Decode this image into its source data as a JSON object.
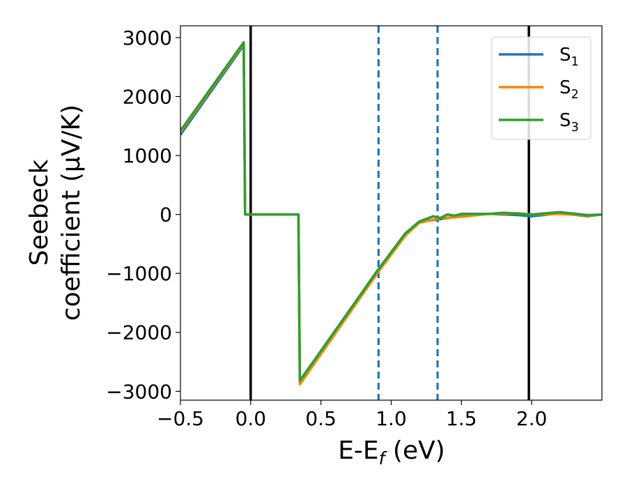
{
  "chart_data": {
    "type": "line",
    "xlabel": "E-E",
    "xlabel_sub": "f",
    "xlabel_unit": " (eV)",
    "ylabel_line1": "Seebeck",
    "ylabel_line2": "coefficient  (μV/K)",
    "xlim": [
      -0.5,
      2.5
    ],
    "ylim": [
      -3150,
      3200
    ],
    "xticks": [
      -0.5,
      0.0,
      0.5,
      1.0,
      1.5,
      2.0
    ],
    "xtick_labels": [
      "−0.5",
      "0.0",
      "0.5",
      "1.0",
      "1.5",
      "2.0"
    ],
    "yticks": [
      3000,
      2000,
      1000,
      0,
      -1000,
      -2000,
      -3000
    ],
    "ytick_labels": [
      "3000",
      "2000",
      "1000",
      "0",
      "−1000",
      "−2000",
      "−3000"
    ],
    "vlines": [
      {
        "x": 0.0,
        "style": "solid",
        "color": "#000000"
      },
      {
        "x": 1.98,
        "style": "solid",
        "color": "#000000"
      },
      {
        "x": 0.91,
        "style": "dashed",
        "color": "#1f77b4"
      },
      {
        "x": 1.33,
        "style": "dashed",
        "color": "#1f77b4"
      }
    ],
    "legend_position": "top-right",
    "series": [
      {
        "name": "S",
        "sub": "1",
        "color": "#1f77b4",
        "x": [
          -0.5,
          -0.05,
          -0.04,
          0.34,
          0.35,
          0.9,
          1.1,
          1.2,
          1.35,
          1.5,
          1.7,
          1.9,
          2.0,
          2.2,
          2.4,
          2.5
        ],
        "y": [
          1350,
          2870,
          0,
          0,
          -2840,
          -960,
          -330,
          -120,
          -80,
          -20,
          10,
          -10,
          -30,
          20,
          -30,
          0
        ]
      },
      {
        "name": "S",
        "sub": "2",
        "color": "#ff7f0e",
        "x": [
          -0.5,
          -0.05,
          -0.04,
          0.34,
          0.35,
          0.9,
          1.1,
          1.2,
          1.35,
          1.45,
          1.7,
          1.9,
          2.0,
          2.2,
          2.4,
          2.5
        ],
        "y": [
          1400,
          2900,
          0,
          0,
          -2880,
          -1000,
          -360,
          -140,
          -60,
          -50,
          10,
          20,
          0,
          10,
          -20,
          0
        ]
      },
      {
        "name": "S",
        "sub": "3",
        "color": "#2ca02c",
        "x": [
          -0.5,
          -0.05,
          -0.04,
          0.34,
          0.35,
          0.9,
          1.1,
          1.2,
          1.3,
          1.35,
          1.4,
          1.45,
          1.5,
          1.7,
          1.8,
          2.0,
          2.2,
          2.4,
          2.5
        ],
        "y": [
          1420,
          2920,
          0,
          0,
          -2820,
          -960,
          -320,
          -120,
          -30,
          -60,
          0,
          -20,
          10,
          10,
          30,
          0,
          40,
          -10,
          0
        ]
      }
    ]
  }
}
